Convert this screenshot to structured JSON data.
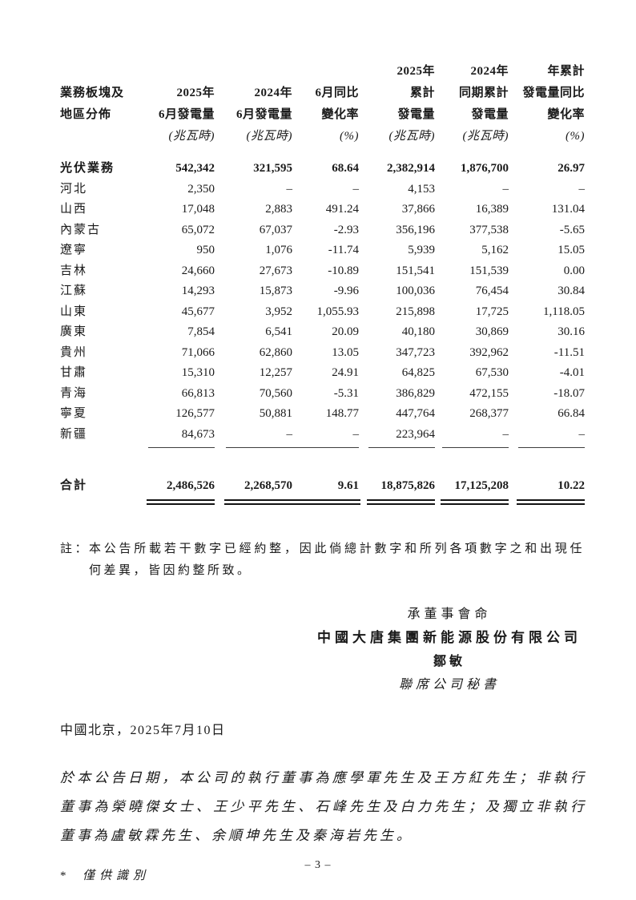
{
  "table": {
    "header_rows": [
      [
        "",
        "",
        "",
        "",
        "2025年",
        "2024年",
        "年累計"
      ],
      [
        "業務板塊及",
        "2025年",
        "2024年",
        "6月同比",
        "累計",
        "同期累計",
        "發電量同比"
      ],
      [
        "地區分佈",
        "6月發電量",
        "6月發電量",
        "變化率",
        "發電量",
        "發電量",
        "變化率"
      ],
      [
        "",
        "(兆瓦時)",
        "(兆瓦時)",
        "(%)",
        "(兆瓦時)",
        "(兆瓦時)",
        "(%)"
      ]
    ],
    "rows": [
      {
        "label": "光伏業務",
        "bold": true,
        "values": [
          "542,342",
          "321,595",
          "68.64",
          "2,382,914",
          "1,876,700",
          "26.97"
        ]
      },
      {
        "label": "河北",
        "values": [
          "2,350",
          "–",
          "–",
          "4,153",
          "–",
          "–"
        ]
      },
      {
        "label": "山西",
        "values": [
          "17,048",
          "2,883",
          "491.24",
          "37,866",
          "16,389",
          "131.04"
        ]
      },
      {
        "label": "內蒙古",
        "values": [
          "65,072",
          "67,037",
          "-2.93",
          "356,196",
          "377,538",
          "-5.65"
        ]
      },
      {
        "label": "遼寧",
        "values": [
          "950",
          "1,076",
          "-11.74",
          "5,939",
          "5,162",
          "15.05"
        ]
      },
      {
        "label": "吉林",
        "values": [
          "24,660",
          "27,673",
          "-10.89",
          "151,541",
          "151,539",
          "0.00"
        ]
      },
      {
        "label": "江蘇",
        "values": [
          "14,293",
          "15,873",
          "-9.96",
          "100,036",
          "76,454",
          "30.84"
        ]
      },
      {
        "label": "山東",
        "values": [
          "45,677",
          "3,952",
          "1,055.93",
          "215,898",
          "17,725",
          "1,118.05"
        ]
      },
      {
        "label": "廣東",
        "values": [
          "7,854",
          "6,541",
          "20.09",
          "40,180",
          "30,869",
          "30.16"
        ]
      },
      {
        "label": "貴州",
        "values": [
          "71,066",
          "62,860",
          "13.05",
          "347,723",
          "392,962",
          "-11.51"
        ]
      },
      {
        "label": "甘肅",
        "values": [
          "15,310",
          "12,257",
          "24.91",
          "64,825",
          "67,530",
          "-4.01"
        ]
      },
      {
        "label": "青海",
        "values": [
          "66,813",
          "70,560",
          "-5.31",
          "386,829",
          "472,155",
          "-18.07"
        ]
      },
      {
        "label": "寧夏",
        "values": [
          "126,577",
          "50,881",
          "148.77",
          "447,764",
          "268,377",
          "66.84"
        ]
      },
      {
        "label": "新疆",
        "underline": true,
        "values": [
          "84,673",
          "–",
          "–",
          "223,964",
          "–",
          "–"
        ]
      }
    ],
    "total": {
      "label": "合計",
      "values": [
        "2,486,526",
        "2,268,570",
        "9.61",
        "18,875,826",
        "17,125,208",
        "10.22"
      ]
    }
  },
  "note": {
    "label": "註：",
    "text": "本公告所載若干數字已經約整，因此倘總計數字和所列各項數字之和出現任何差異，皆因約整所致。"
  },
  "signature": {
    "on_behalf": "承董事會命",
    "company": "中國大唐集團新能源股份有限公司",
    "name": "鄒敏",
    "title": "聯席公司秘書"
  },
  "dateline": "中國北京，2025年7月10日",
  "directors_paragraph": "於本公告日期，本公司的執行董事為應學軍先生及王方紅先生；非執行董事為榮曉傑女士、王少平先生、石峰先生及白力先生；及獨立非執行董事為盧敏霖先生、余順坤先生及秦海岩先生。",
  "footnote": {
    "marker": "*",
    "text": "僅供識別"
  },
  "footer": {
    "page_number": "– 3 –"
  }
}
